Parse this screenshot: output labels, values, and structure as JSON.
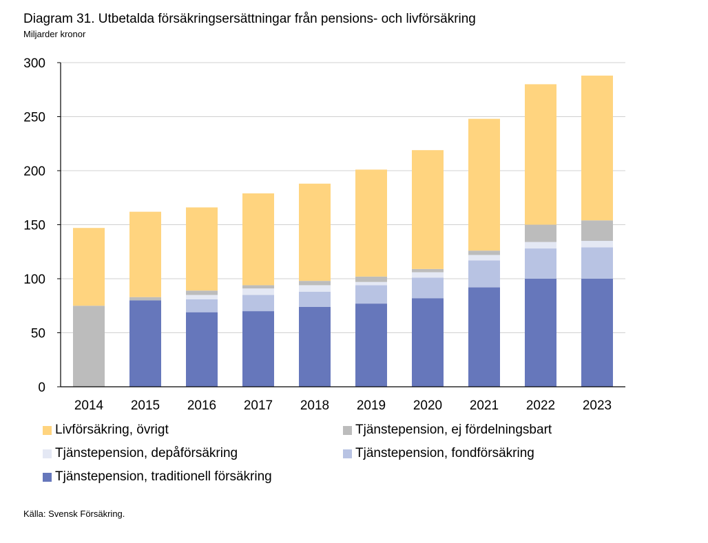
{
  "header": {
    "title": "Diagram 31. Utbetalda försäkringsersättningar från pensions- och livförsäkring",
    "subtitle": "Miljarder kronor"
  },
  "source": "Källa: Svensk Försäkring.",
  "chart_data": {
    "type": "bar",
    "stacked": true,
    "title": "Diagram 31. Utbetalda försäkringsersättningar från pensions- och livförsäkring",
    "ylabel": "Miljarder kronor",
    "xlabel": "",
    "ylim": [
      0,
      300
    ],
    "yticks": [
      0,
      50,
      100,
      150,
      200,
      250,
      300
    ],
    "grid": true,
    "legend_position": "bottom",
    "categories": [
      "2014",
      "2015",
      "2016",
      "2017",
      "2018",
      "2019",
      "2020",
      "2021",
      "2022",
      "2023"
    ],
    "series": [
      {
        "name": "Tjänstepension, traditionell försäkring",
        "color": "#6677BB",
        "values": [
          0,
          80,
          69,
          70,
          74,
          77,
          82,
          92,
          100,
          100
        ]
      },
      {
        "name": "Tjänstepension, fondförsäkring",
        "color": "#B8C3E3",
        "values": [
          0,
          0,
          12,
          15,
          14,
          17,
          19,
          25,
          28,
          29
        ]
      },
      {
        "name": "Tjänstepension, depåförsäkring",
        "color": "#E4E8F4",
        "values": [
          0,
          0,
          4,
          6,
          6,
          3,
          5,
          5,
          6,
          6
        ]
      },
      {
        "name": "Tjänstepension, ej fördelningsbart",
        "color": "#BCBCBC",
        "values": [
          75,
          3,
          4,
          3,
          4,
          5,
          3,
          4,
          16,
          19
        ]
      },
      {
        "name": "Livförsäkring, övrigt",
        "color": "#FFD47F",
        "values": [
          72,
          79,
          77,
          85,
          90,
          99,
          110,
          122,
          130,
          134
        ]
      }
    ],
    "legend_order": [
      "Livförsäkring, övrigt",
      "Tjänstepension, ej fördelningsbart",
      "Tjänstepension, depåförsäkring",
      "Tjänstepension, fondförsäkring",
      "Tjänstepension, traditionell försäkring"
    ]
  }
}
